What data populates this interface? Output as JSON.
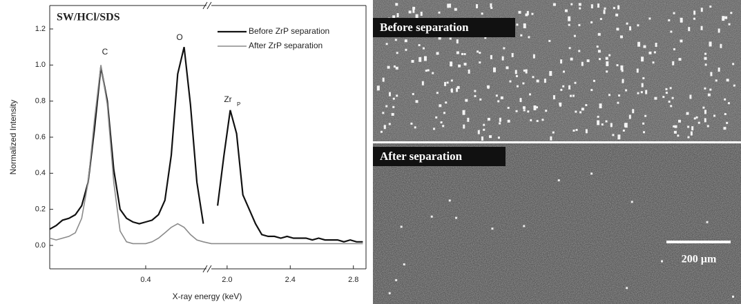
{
  "chart_data": {
    "type": "line",
    "title": "SW/HCl/SDS",
    "xlabel": "X-ray energy (keV)",
    "ylabel": "Normalized Intensity",
    "x": [
      0.1,
      0.12,
      0.14,
      0.16,
      0.18,
      0.2,
      0.22,
      0.24,
      0.26,
      0.28,
      0.3,
      0.32,
      0.34,
      0.36,
      0.38,
      0.4,
      0.42,
      0.44,
      0.46,
      0.48,
      0.5,
      0.52,
      0.54,
      0.56,
      0.58,
      1.9,
      1.94,
      1.98,
      2.02,
      2.06,
      2.1,
      2.14,
      2.18,
      2.22,
      2.26,
      2.3,
      2.34,
      2.38,
      2.42,
      2.46,
      2.5,
      2.54,
      2.58,
      2.62,
      2.66,
      2.7,
      2.74,
      2.78,
      2.82,
      2.86
    ],
    "series": [
      {
        "name": "Before ZrP separation",
        "color": "#111111",
        "values": [
          0.09,
          0.11,
          0.14,
          0.15,
          0.17,
          0.22,
          0.35,
          0.65,
          0.99,
          0.8,
          0.42,
          0.2,
          0.15,
          0.13,
          0.12,
          0.13,
          0.14,
          0.17,
          0.25,
          0.5,
          0.95,
          1.1,
          0.78,
          0.35,
          0.12,
          null,
          0.22,
          0.5,
          0.75,
          0.62,
          0.28,
          0.2,
          0.12,
          0.06,
          0.05,
          0.05,
          0.04,
          0.05,
          0.04,
          0.04,
          0.04,
          0.03,
          0.04,
          0.03,
          0.03,
          0.03,
          0.02,
          0.03,
          0.02,
          0.02
        ]
      },
      {
        "name": "After ZrP separation",
        "color": "#8a8a8a",
        "values": [
          0.04,
          0.03,
          0.04,
          0.05,
          0.07,
          0.15,
          0.35,
          0.7,
          1.0,
          0.78,
          0.35,
          0.08,
          0.02,
          0.01,
          0.01,
          0.01,
          0.02,
          0.04,
          0.07,
          0.1,
          0.12,
          0.1,
          0.06,
          0.03,
          0.02,
          0.01,
          0.01,
          0.01,
          0.01,
          0.01,
          0.01,
          0.01,
          0.01,
          0.01,
          0.01,
          0.01,
          0.01,
          0.01,
          0.01,
          0.01,
          0.01,
          0.01,
          0.01,
          0.01,
          0.01,
          0.01,
          0.01,
          0.01,
          0.01,
          0.01
        ]
      }
    ],
    "x_segments": [
      {
        "xlim": [
          0.1,
          0.59
        ],
        "xticks": [
          0.4
        ]
      },
      {
        "xlim": [
          1.9,
          2.88
        ],
        "xticks": [
          {
            "value": 2.0,
            "label": "2.0"
          },
          2.4,
          2.8
        ]
      }
    ],
    "ylim": [
      -0.13,
      1.33
    ],
    "yticks": [
      {
        "value": 0,
        "label": "0.0"
      },
      0.2,
      0.4,
      0.6,
      0.8,
      {
        "value": 1.0,
        "label": "1.0"
      },
      1.2
    ],
    "annotations": [
      "C",
      "O",
      "Zr",
      "P"
    ],
    "legend": "top-right"
  },
  "images": [
    {
      "label": "Before separation"
    },
    {
      "label": "After separation"
    }
  ],
  "scale_bar": "200 µm"
}
